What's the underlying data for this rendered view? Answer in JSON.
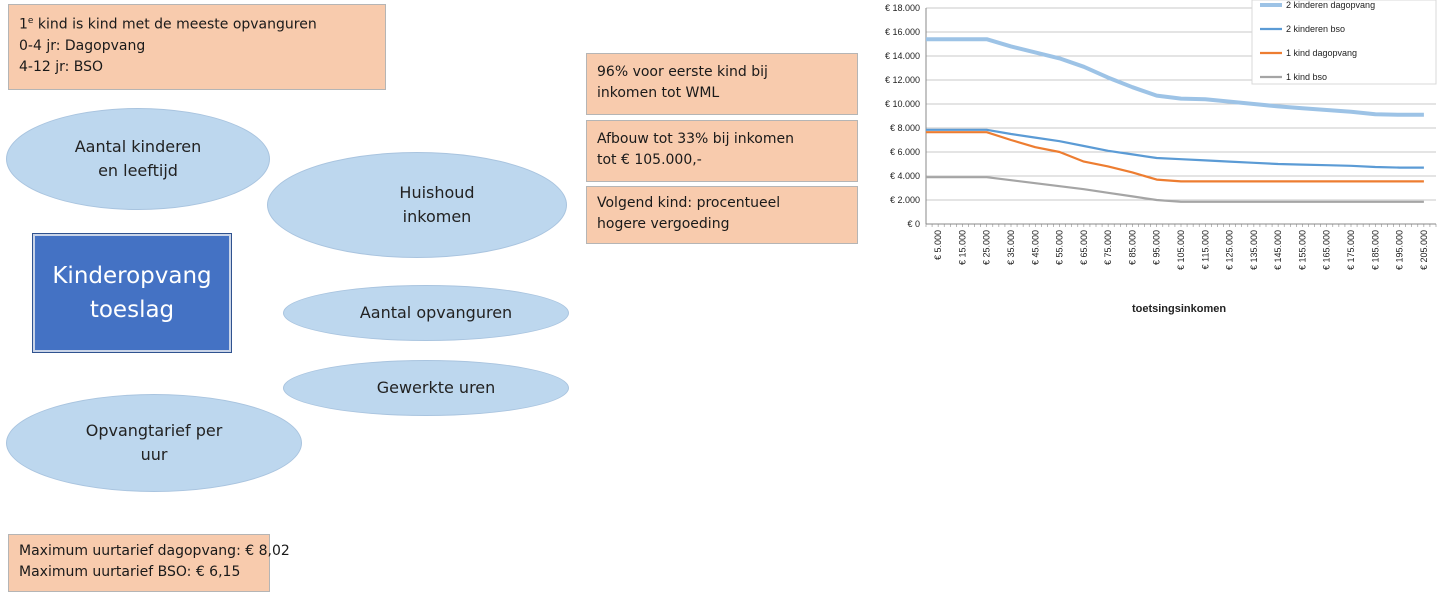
{
  "info_top": {
    "line1_prefix": "1",
    "line1_sup": "e",
    "line1_rest": " kind is kind met de meeste opvanguren",
    "line2": "0-4 jr: Dagopvang",
    "line3": "4-12 jr: BSO"
  },
  "info_bottom": {
    "line1": "Maximum uurtarief dagopvang: € 8,02",
    "line2": "Maximum uurtarief BSO: € 6,15"
  },
  "center": {
    "line1": "Kinderopvang",
    "line2": "toeslag"
  },
  "factors": {
    "children": [
      "Aantal kinderen",
      "en leeftijd"
    ],
    "income": [
      "Huishoud",
      "inkomen"
    ],
    "hours": "Aantal opvanguren",
    "worked": "Gewerkte uren",
    "rate": [
      "Opvangtarief per",
      "uur"
    ]
  },
  "notes": {
    "note1": [
      "96% voor eerste kind bij",
      "inkomen tot WML"
    ],
    "note2": [
      "Afbouw tot 33% bij inkomen",
      "tot € 105.000,-"
    ],
    "note3": [
      "Volgend kind: procentueel",
      "hogere vergoeding"
    ]
  },
  "colors": {
    "box": "#f8cbad",
    "ellipse": "#bdd7ee",
    "center": "#4472c4"
  },
  "chart_data": {
    "type": "line",
    "xlabel": "toetsingsinkomen",
    "ylabel": "",
    "ylim": [
      0,
      18000
    ],
    "yticks": [
      "€ 0",
      "€ 2.000",
      "€ 4.000",
      "€ 6.000",
      "€ 8.000",
      "€ 10.000",
      "€ 12.000",
      "€ 14.000",
      "€ 16.000",
      "€ 18.000"
    ],
    "ytick_values": [
      0,
      2000,
      4000,
      6000,
      8000,
      10000,
      12000,
      14000,
      16000,
      18000
    ],
    "categories": [
      "€ 5.000",
      "€ 15.000",
      "€ 25.000",
      "€ 35.000",
      "€ 45.000",
      "€ 55.000",
      "€ 65.000",
      "€ 75.000",
      "€ 85.000",
      "€ 95.000",
      "€ 105.000",
      "€ 115.000",
      "€ 125.000",
      "€ 135.000",
      "€ 145.000",
      "€ 155.000",
      "€ 165.000",
      "€ 175.000",
      "€ 185.000",
      "€ 195.000",
      "€ 205.000"
    ],
    "x": [
      5000,
      15000,
      25000,
      35000,
      45000,
      55000,
      65000,
      75000,
      85000,
      95000,
      105000,
      115000,
      125000,
      135000,
      145000,
      155000,
      165000,
      175000,
      185000,
      195000,
      205000
    ],
    "grid": true,
    "legend_position": "top-right",
    "series": [
      {
        "name": "2 kinderen dagopvang",
        "color": "#9dc3e6",
        "values": [
          15400,
          15400,
          15400,
          14800,
          14300,
          13800,
          13100,
          12200,
          11400,
          10700,
          10450,
          10400,
          10200,
          10000,
          9800,
          9650,
          9500,
          9350,
          9150,
          9100,
          9100
        ]
      },
      {
        "name": "2 kinderen bso",
        "color": "#5b9bd5",
        "values": [
          7850,
          7850,
          7850,
          7500,
          7200,
          6900,
          6500,
          6100,
          5800,
          5500,
          5400,
          5300,
          5200,
          5100,
          5000,
          4950,
          4900,
          4850,
          4750,
          4700,
          4700
        ]
      },
      {
        "name": "1 kind dagopvang",
        "color": "#ed7d31",
        "values": [
          7650,
          7650,
          7650,
          7000,
          6400,
          6000,
          5200,
          4800,
          4300,
          3700,
          3550,
          3550,
          3550,
          3550,
          3550,
          3550,
          3550,
          3550,
          3550,
          3550,
          3550
        ]
      },
      {
        "name": "1 kind bso",
        "color": "#a5a5a5",
        "values": [
          3900,
          3900,
          3900,
          3650,
          3400,
          3150,
          2900,
          2600,
          2300,
          2000,
          1850,
          1850,
          1850,
          1850,
          1850,
          1850,
          1850,
          1850,
          1850,
          1850,
          1850
        ]
      }
    ]
  }
}
